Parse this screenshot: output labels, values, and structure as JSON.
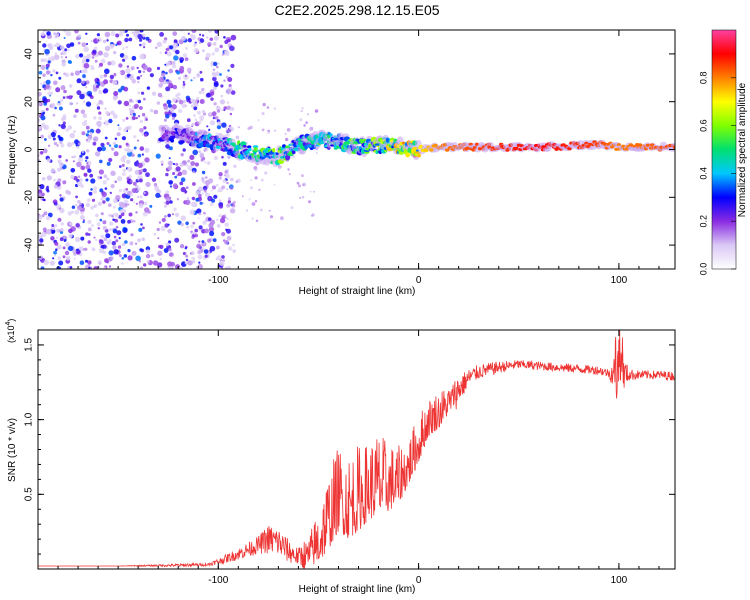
{
  "chart_data": [
    {
      "type": "heatmap",
      "title": "C2E2.2025.298.12.15.E05",
      "xlabel": "Height of straight line (km)",
      "ylabel": "Frequency (Hz)",
      "xlim": [
        -190,
        128
      ],
      "ylim": [
        -50,
        50
      ],
      "x_ticks": [
        -100,
        0,
        100
      ],
      "y_ticks": [
        -40,
        -20,
        0,
        20,
        40
      ],
      "colorbar": {
        "label": "Normalized spectral amplitude",
        "range": [
          0,
          1
        ],
        "ticks": [
          "0.0",
          "0.2",
          "0.4",
          "0.6",
          "0.8"
        ],
        "colors": [
          "#ffffff",
          "#d9c8f5",
          "#8a2be2",
          "#0000ff",
          "#00c8ff",
          "#00e070",
          "#80ff00",
          "#ffff00",
          "#ff8000",
          "#ff0000",
          "#ff40a0"
        ]
      },
      "ridge": {
        "x": [
          -120,
          -100,
          -90,
          -80,
          -70,
          -60,
          -50,
          -40,
          -30,
          -20,
          -10,
          0,
          10,
          30,
          60,
          90,
          100,
          128
        ],
        "freq_hz": [
          6,
          3,
          0,
          -2,
          -3,
          2,
          4,
          3,
          1,
          2,
          1,
          0,
          1,
          1,
          1,
          2,
          1,
          1
        ],
        "amplitude": [
          0.25,
          0.35,
          0.45,
          0.45,
          0.5,
          0.4,
          0.45,
          0.4,
          0.5,
          0.55,
          0.6,
          0.7,
          0.8,
          0.85,
          0.9,
          0.85,
          0.8,
          0.85
        ]
      },
      "noise_region_x": [
        -190,
        -100
      ]
    },
    {
      "type": "line",
      "xlabel": "Height of straight line (km)",
      "ylabel": "SNR (10 * v/v)",
      "y_multiplier": "(x10",
      "y_multiplier_exp": "4",
      "y_multiplier_close": ")",
      "xlim": [
        -190,
        128
      ],
      "ylim": [
        0,
        1.6
      ],
      "x_ticks": [
        -100,
        0,
        100
      ],
      "y_ticks": [
        0.5,
        1.0,
        1.5
      ],
      "y_tick_labels": [
        "0.5",
        "1.0",
        "1.5"
      ],
      "series": [
        {
          "name": "SNR",
          "color": "#ee3333",
          "x": [
            -190,
            -150,
            -120,
            -105,
            -100,
            -90,
            -80,
            -75,
            -70,
            -65,
            -60,
            -55,
            -50,
            -45,
            -40,
            -35,
            -30,
            -25,
            -20,
            -15,
            -10,
            -5,
            0,
            5,
            10,
            15,
            20,
            25,
            30,
            40,
            50,
            60,
            70,
            80,
            90,
            95,
            100,
            105,
            110,
            120,
            128
          ],
          "values": [
            0.02,
            0.02,
            0.025,
            0.03,
            0.05,
            0.1,
            0.16,
            0.2,
            0.18,
            0.12,
            0.08,
            0.1,
            0.2,
            0.35,
            0.5,
            0.45,
            0.5,
            0.55,
            0.6,
            0.58,
            0.6,
            0.7,
            0.85,
            1.0,
            1.05,
            1.12,
            1.2,
            1.28,
            1.32,
            1.35,
            1.37,
            1.36,
            1.35,
            1.34,
            1.33,
            1.31,
            1.32,
            1.3,
            1.3,
            1.3,
            1.29
          ],
          "noise_amp": [
            0,
            0,
            0.01,
            0.01,
            0.02,
            0.04,
            0.06,
            0.1,
            0.1,
            0.08,
            0.06,
            0.15,
            0.3,
            0.4,
            0.45,
            0.45,
            0.45,
            0.4,
            0.45,
            0.35,
            0.3,
            0.25,
            0.25,
            0.2,
            0.2,
            0.15,
            0.1,
            0.06,
            0.05,
            0.04,
            0.03,
            0.03,
            0.03,
            0.03,
            0.03,
            0.03,
            0.2,
            0.04,
            0.03,
            0.03,
            0.03
          ]
        }
      ]
    }
  ]
}
